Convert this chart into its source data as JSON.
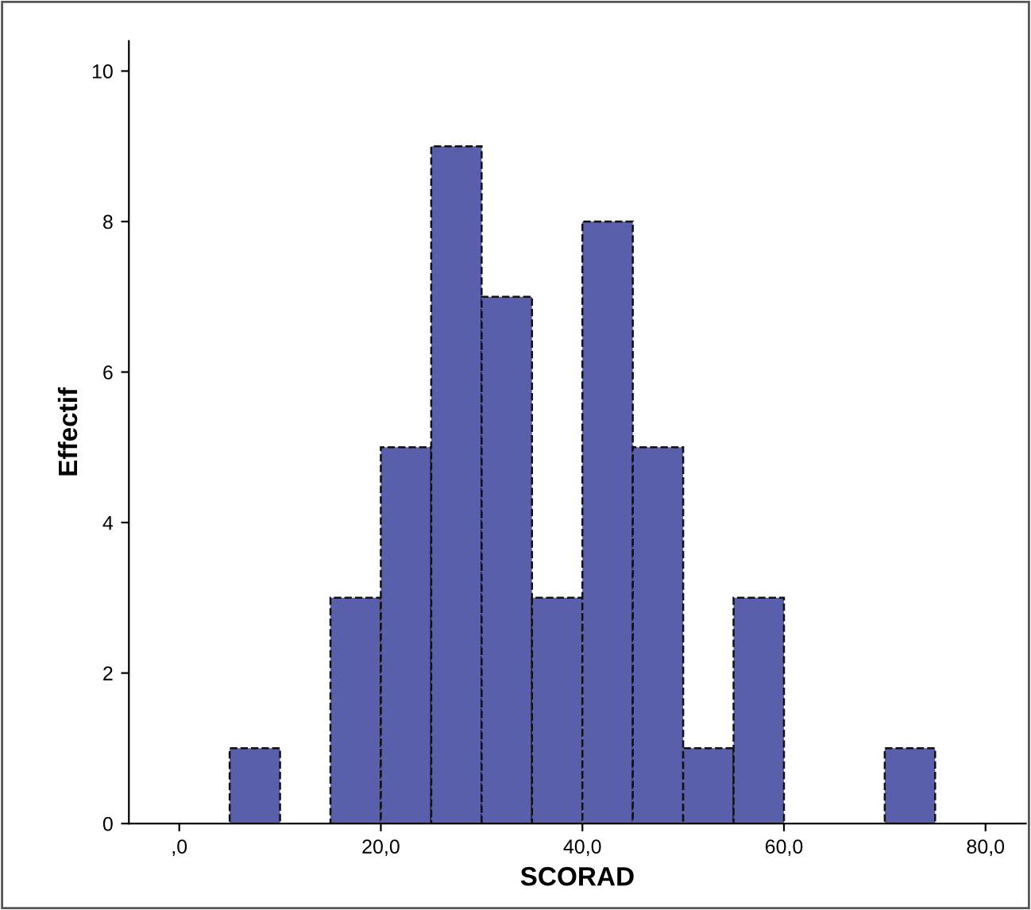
{
  "chart_data": {
    "type": "histogram",
    "xlabel": "SCORAD",
    "ylabel": "Effectif",
    "bins": [
      5,
      10,
      15,
      20,
      25,
      30,
      35,
      40,
      45,
      50,
      55,
      60,
      65,
      70,
      75
    ],
    "values": [
      1,
      0,
      3,
      5,
      9,
      7,
      3,
      8,
      5,
      1,
      3,
      0,
      0,
      1
    ],
    "color": "#5a5fab",
    "line_style": "dashed",
    "xlim": [
      -5,
      84
    ],
    "xticks": [
      {
        "value": 0,
        "label": ",0"
      },
      {
        "value": 20,
        "label": "20,0"
      },
      {
        "value": 40,
        "label": "40,0"
      },
      {
        "value": 60,
        "label": "60,0"
      },
      {
        "value": 80,
        "label": "80,0"
      }
    ],
    "ylim": [
      0,
      10.4
    ],
    "yticks": [
      0,
      2,
      4,
      6,
      8,
      10
    ],
    "grid": false
  }
}
